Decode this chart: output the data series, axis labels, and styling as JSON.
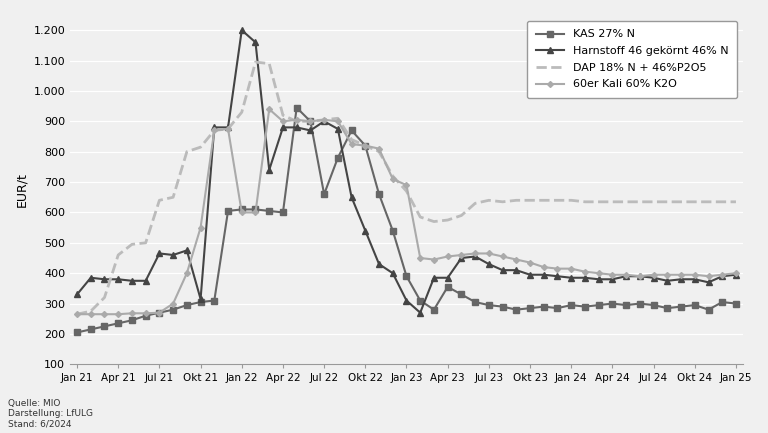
{
  "title": "",
  "ylabel": "EUR/t",
  "background_color": "#f0f0f0",
  "plot_background": "#f0f0f0",
  "grid_color": "#ffffff",
  "footnote": "Quelle: MIO\nDarstellung: LfULG\nStand: 6/2024",
  "x_labels": [
    "Jan 21",
    "Apr 21",
    "Jul 21",
    "Okt 21",
    "Jan 22",
    "Apr 22",
    "Jul 22",
    "Okt 22",
    "Jan 23",
    "Apr 23",
    "Jul 23",
    "Okt 23",
    "Jan 24",
    "Apr 24",
    "Jul 24",
    "Okt 24",
    "Jan 25"
  ],
  "ylim": [
    100,
    1250
  ],
  "yticks": [
    100,
    200,
    300,
    400,
    500,
    600,
    700,
    800,
    900,
    1000,
    1100,
    1200
  ],
  "n_months": 49,
  "series": [
    {
      "label": "KAS 27% N",
      "color": "#666666",
      "linestyle": "-",
      "marker": "s",
      "markersize": 4,
      "linewidth": 1.5,
      "values": [
        205,
        215,
        225,
        235,
        245,
        260,
        270,
        280,
        295,
        305,
        310,
        605,
        610,
        610,
        605,
        600,
        945,
        900,
        660,
        780,
        870,
        820,
        660,
        540,
        390,
        310,
        280,
        355,
        330,
        305,
        295,
        290,
        280,
        285,
        290,
        285,
        295,
        290,
        295,
        300,
        295,
        300,
        295,
        285,
        290,
        295,
        280,
        305,
        300
      ]
    },
    {
      "label": "Harnstoff 46 gekörnt 46% N",
      "color": "#444444",
      "linestyle": "-",
      "marker": "^",
      "markersize": 4,
      "linewidth": 1.5,
      "values": [
        330,
        385,
        380,
        380,
        375,
        375,
        465,
        460,
        475,
        315,
        880,
        880,
        1200,
        1160,
        740,
        880,
        880,
        870,
        900,
        875,
        650,
        540,
        430,
        400,
        310,
        270,
        385,
        385,
        450,
        455,
        430,
        410,
        410,
        395,
        395,
        390,
        385,
        385,
        380,
        380,
        390,
        390,
        385,
        375,
        380,
        380,
        370,
        390,
        395
      ]
    },
    {
      "label": "DAP 18% N + 46%P2O5",
      "color": "#bbbbbb",
      "linestyle": "--",
      "marker": null,
      "markersize": 0,
      "linewidth": 2.0,
      "values": [
        265,
        275,
        320,
        460,
        495,
        500,
        640,
        650,
        800,
        815,
        870,
        875,
        930,
        1095,
        1090,
        920,
        900,
        900,
        905,
        910,
        840,
        820,
        800,
        720,
        670,
        585,
        570,
        575,
        590,
        630,
        640,
        635,
        640,
        640,
        640,
        640,
        640,
        635,
        635,
        635,
        635,
        635,
        635,
        635,
        635,
        635,
        635,
        635,
        635
      ]
    },
    {
      "label": "60er Kali 60% K2O",
      "color": "#aaaaaa",
      "linestyle": "-",
      "marker": "D",
      "markersize": 3,
      "linewidth": 1.5,
      "values": [
        265,
        265,
        265,
        265,
        268,
        268,
        270,
        300,
        400,
        550,
        870,
        875,
        600,
        600,
        940,
        900,
        905,
        900,
        905,
        900,
        825,
        820,
        810,
        710,
        690,
        450,
        445,
        455,
        460,
        465,
        465,
        455,
        445,
        435,
        420,
        415,
        415,
        405,
        400,
        395,
        395,
        390,
        395,
        395,
        395,
        395,
        390,
        395,
        400
      ]
    }
  ]
}
